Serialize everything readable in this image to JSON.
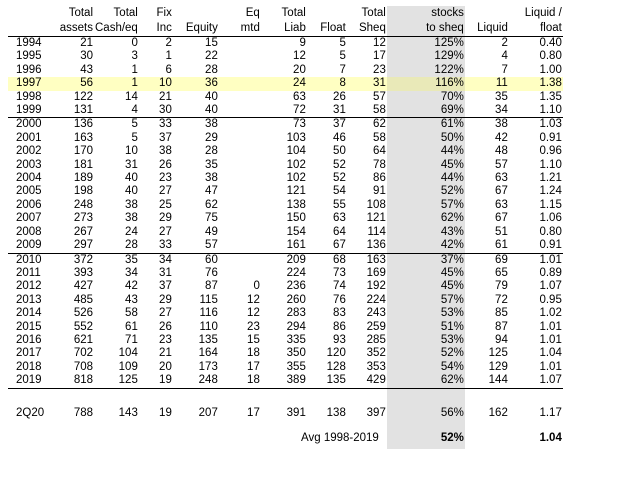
{
  "headers": {
    "row1": [
      "",
      "Total",
      "Total",
      "Fix",
      "",
      "Eq",
      "Total",
      "",
      "Total",
      "stocks",
      "",
      "Liquid /"
    ],
    "row2": [
      "",
      "assets",
      "Cash/eq",
      "Inc",
      "Equity",
      "mtd",
      "Liab",
      "Float",
      "Sheq",
      "to sheq",
      "Liquid",
      "float"
    ]
  },
  "rows": [
    [
      "1994",
      "21",
      "0",
      "2",
      "15",
      "",
      "9",
      "5",
      "12",
      "125%",
      "2",
      "0.40"
    ],
    [
      "1995",
      "30",
      "3",
      "1",
      "22",
      "",
      "12",
      "5",
      "17",
      "129%",
      "4",
      "0.80"
    ],
    [
      "1996",
      "43",
      "1",
      "6",
      "28",
      "",
      "20",
      "7",
      "23",
      "122%",
      "7",
      "1.00"
    ],
    [
      "1997",
      "56",
      "1",
      "10",
      "36",
      "",
      "24",
      "8",
      "31",
      "116%",
      "11",
      "1.38"
    ],
    [
      "1998",
      "122",
      "14",
      "21",
      "40",
      "",
      "63",
      "26",
      "57",
      "70%",
      "35",
      "1.35"
    ],
    [
      "1999",
      "131",
      "4",
      "30",
      "40",
      "",
      "72",
      "31",
      "58",
      "69%",
      "34",
      "1.10"
    ],
    [
      "2000",
      "136",
      "5",
      "33",
      "38",
      "",
      "73",
      "37",
      "62",
      "61%",
      "38",
      "1.03"
    ],
    [
      "2001",
      "163",
      "5",
      "37",
      "29",
      "",
      "103",
      "46",
      "58",
      "50%",
      "42",
      "0.91"
    ],
    [
      "2002",
      "170",
      "10",
      "38",
      "28",
      "",
      "104",
      "50",
      "64",
      "44%",
      "48",
      "0.96"
    ],
    [
      "2003",
      "181",
      "31",
      "26",
      "35",
      "",
      "102",
      "52",
      "78",
      "45%",
      "57",
      "1.10"
    ],
    [
      "2004",
      "189",
      "40",
      "23",
      "38",
      "",
      "102",
      "52",
      "86",
      "44%",
      "63",
      "1.21"
    ],
    [
      "2005",
      "198",
      "40",
      "27",
      "47",
      "",
      "121",
      "54",
      "91",
      "52%",
      "67",
      "1.24"
    ],
    [
      "2006",
      "248",
      "38",
      "25",
      "62",
      "",
      "138",
      "55",
      "108",
      "57%",
      "63",
      "1.15"
    ],
    [
      "2007",
      "273",
      "38",
      "29",
      "75",
      "",
      "150",
      "63",
      "121",
      "62%",
      "67",
      "1.06"
    ],
    [
      "2008",
      "267",
      "24",
      "27",
      "49",
      "",
      "154",
      "64",
      "114",
      "43%",
      "51",
      "0.80"
    ],
    [
      "2009",
      "297",
      "28",
      "33",
      "57",
      "",
      "161",
      "67",
      "136",
      "42%",
      "61",
      "0.91"
    ],
    [
      "2010",
      "372",
      "35",
      "34",
      "60",
      "",
      "209",
      "68",
      "163",
      "37%",
      "69",
      "1.01"
    ],
    [
      "2011",
      "393",
      "34",
      "31",
      "76",
      "",
      "224",
      "73",
      "169",
      "45%",
      "65",
      "0.89"
    ],
    [
      "2012",
      "427",
      "42",
      "37",
      "87",
      "0",
      "236",
      "74",
      "192",
      "45%",
      "79",
      "1.07"
    ],
    [
      "2013",
      "485",
      "43",
      "29",
      "115",
      "12",
      "260",
      "76",
      "224",
      "57%",
      "72",
      "0.95"
    ],
    [
      "2014",
      "526",
      "58",
      "27",
      "116",
      "12",
      "283",
      "83",
      "243",
      "53%",
      "85",
      "1.02"
    ],
    [
      "2015",
      "552",
      "61",
      "26",
      "110",
      "23",
      "294",
      "86",
      "259",
      "51%",
      "87",
      "1.01"
    ],
    [
      "2016",
      "621",
      "71",
      "23",
      "135",
      "15",
      "335",
      "93",
      "285",
      "53%",
      "94",
      "1.01"
    ],
    [
      "2017",
      "702",
      "104",
      "21",
      "164",
      "18",
      "350",
      "120",
      "352",
      "52%",
      "125",
      "1.04"
    ],
    [
      "2018",
      "708",
      "109",
      "20",
      "173",
      "17",
      "355",
      "128",
      "353",
      "54%",
      "129",
      "1.01"
    ],
    [
      "2019",
      "818",
      "125",
      "19",
      "248",
      "18",
      "389",
      "135",
      "429",
      "62%",
      "144",
      "1.07"
    ]
  ],
  "q2": [
    "2Q20",
    "788",
    "143",
    "19",
    "207",
    "17",
    "391",
    "138",
    "397",
    "56%",
    "162",
    "1.17"
  ],
  "avg": {
    "label": "Avg 1998-2019",
    "pct": "52%",
    "ratio": "1.04"
  },
  "colors": {
    "highlight": "#ffffc2",
    "shade": "#e2e2e2"
  }
}
